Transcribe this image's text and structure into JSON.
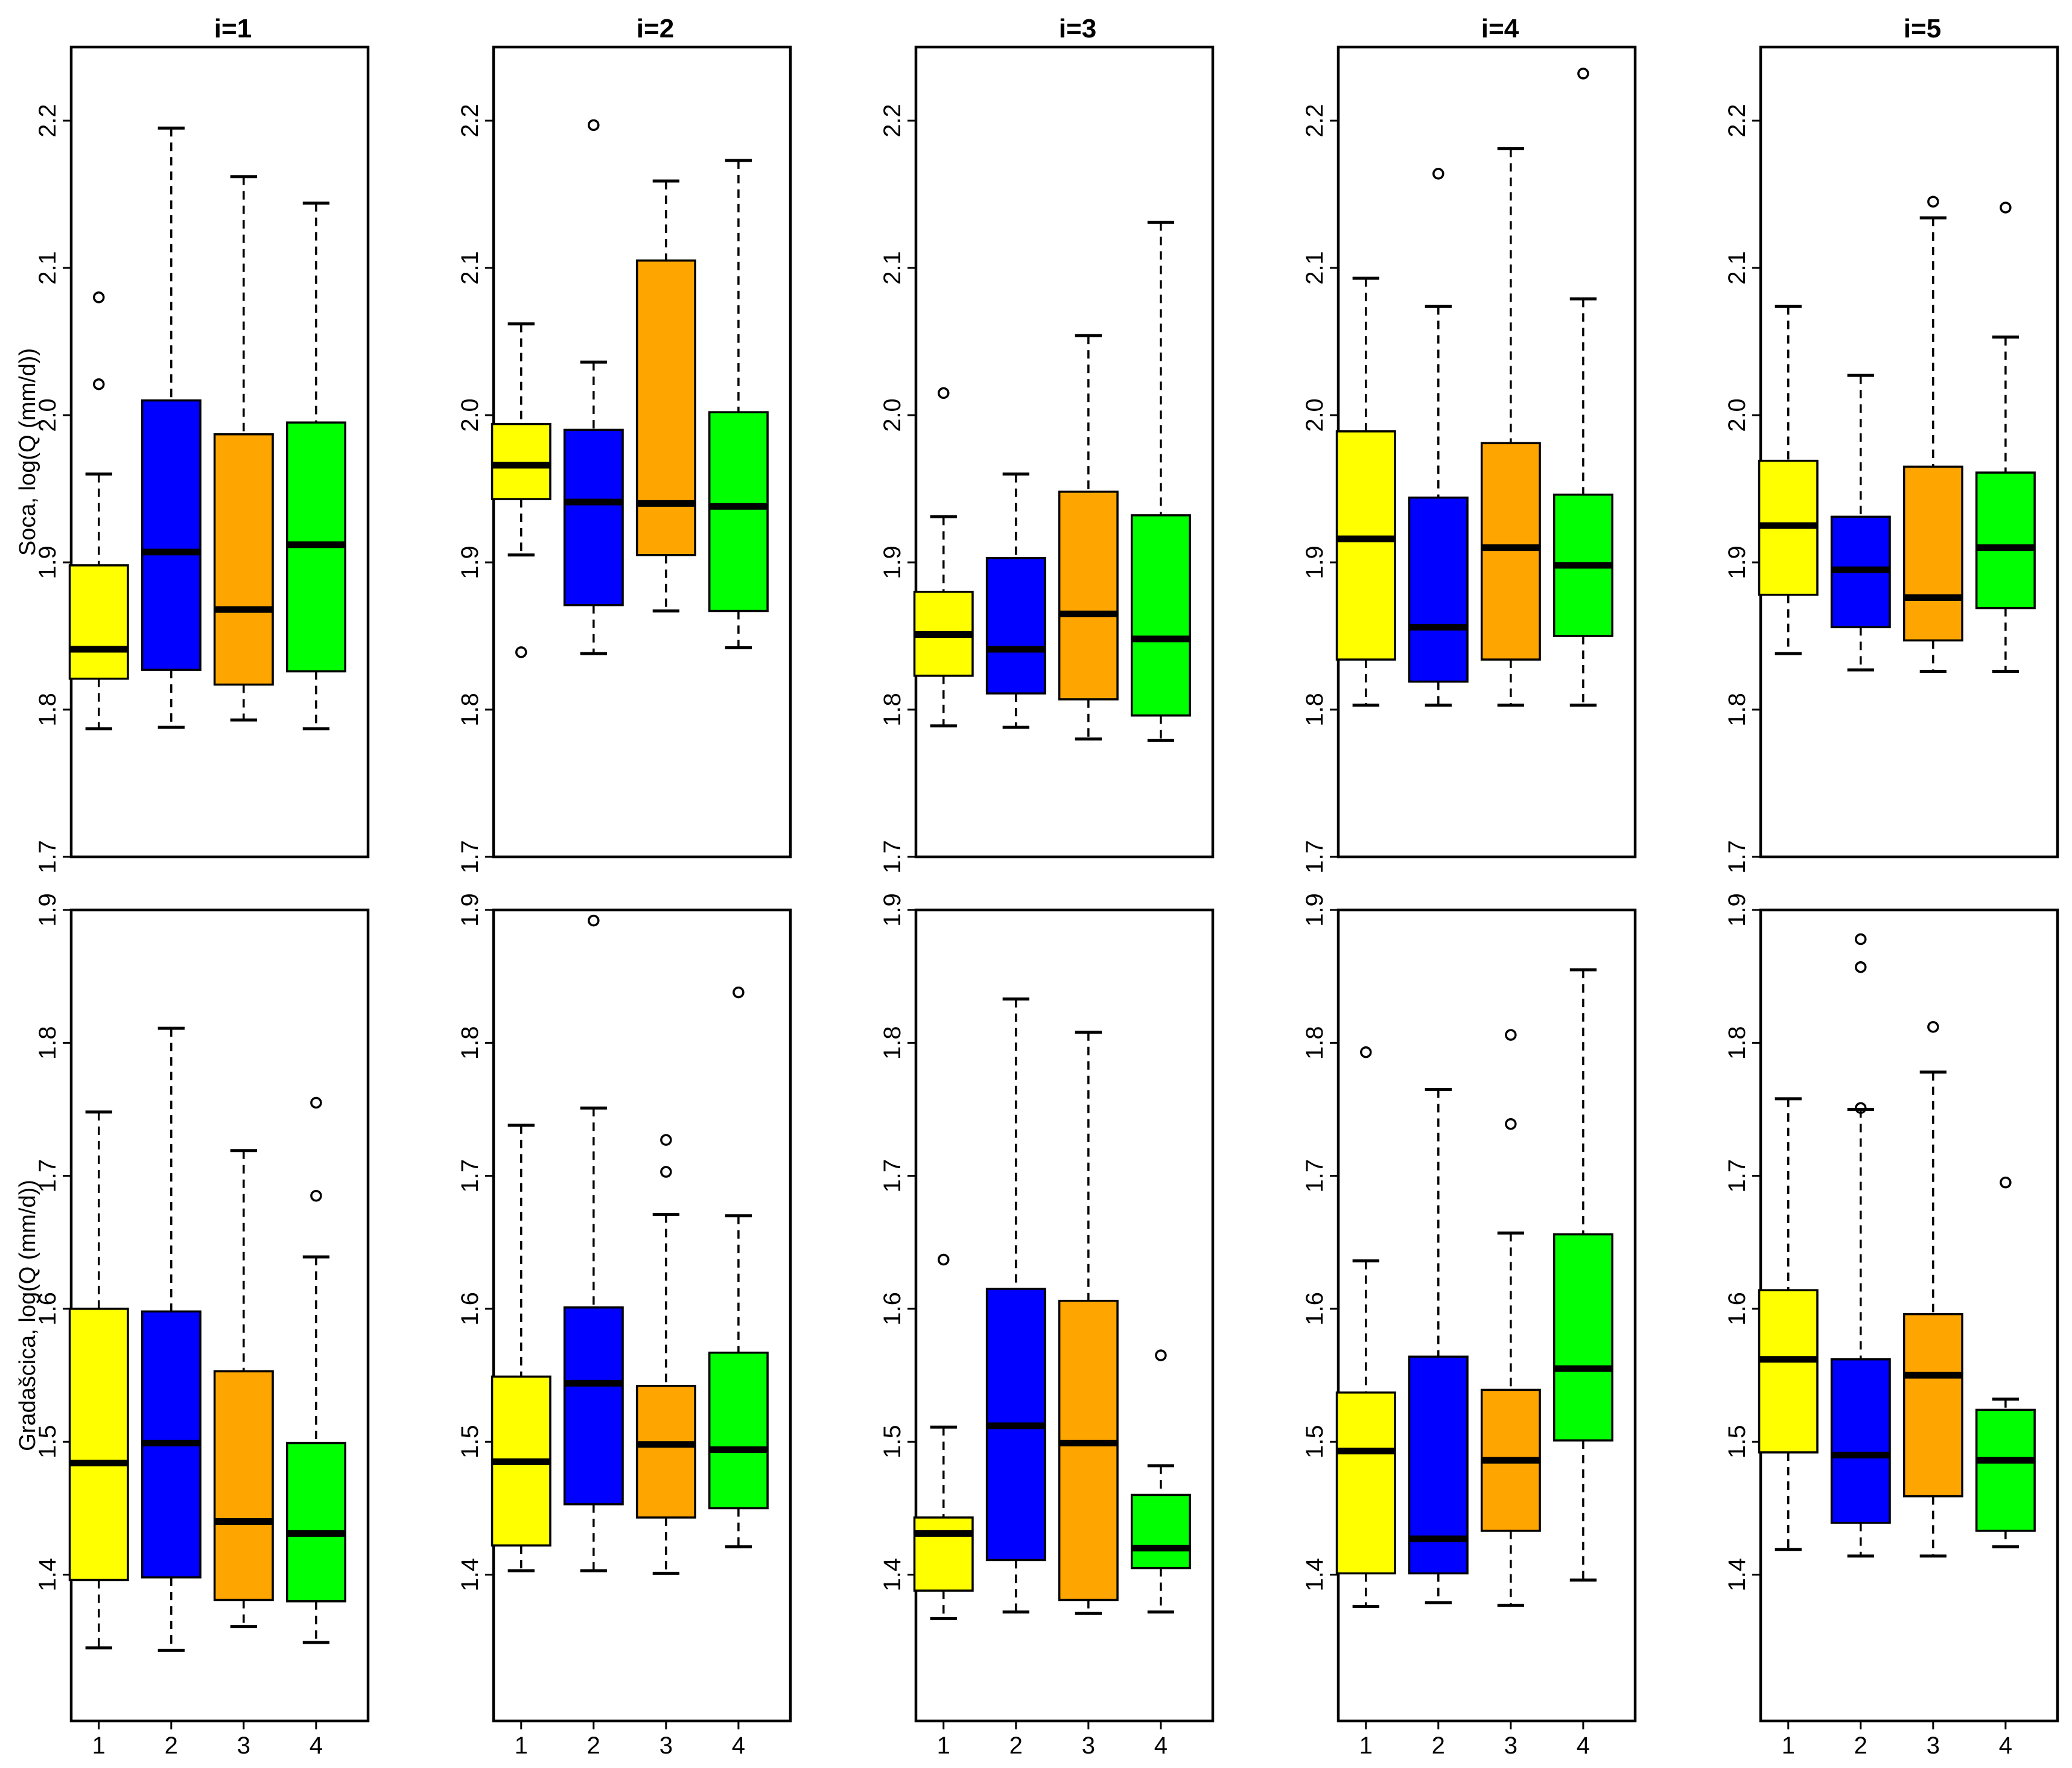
{
  "chart_data": [
    {
      "type": "boxplot",
      "row": 1,
      "ylabel": "Soca, log(Q (mm/d))",
      "ylim": [
        1.7,
        2.25
      ],
      "yticks": [
        "1.7",
        "1.8",
        "1.9",
        "2.0",
        "2.1",
        "2.2"
      ],
      "categories": [
        "1",
        "2",
        "3",
        "4"
      ],
      "colors": [
        "#ffff00",
        "#0000ff",
        "#ffa500",
        "#00ff00"
      ],
      "panels": [
        {
          "title": "i=1",
          "boxes": [
            {
              "min": 1.787,
              "q1": 1.821,
              "median": 1.841,
              "q3": 1.898,
              "max": 1.96,
              "outliers": [
                2.021,
                2.08
              ]
            },
            {
              "min": 1.788,
              "q1": 1.827,
              "median": 1.907,
              "q3": 2.01,
              "max": 2.195,
              "outliers": []
            },
            {
              "min": 1.793,
              "q1": 1.817,
              "median": 1.868,
              "q3": 1.987,
              "max": 2.162,
              "outliers": []
            },
            {
              "min": 1.787,
              "q1": 1.826,
              "median": 1.912,
              "q3": 1.995,
              "max": 2.144,
              "outliers": []
            }
          ]
        },
        {
          "title": "i=2",
          "boxes": [
            {
              "min": 1.905,
              "q1": 1.943,
              "median": 1.966,
              "q3": 1.994,
              "max": 2.062,
              "outliers": [
                1.839
              ]
            },
            {
              "min": 1.838,
              "q1": 1.871,
              "median": 1.941,
              "q3": 1.99,
              "max": 2.036,
              "outliers": [
                2.197
              ]
            },
            {
              "min": 1.867,
              "q1": 1.905,
              "median": 1.94,
              "q3": 2.105,
              "max": 2.159,
              "outliers": []
            },
            {
              "min": 1.842,
              "q1": 1.867,
              "median": 1.938,
              "q3": 2.002,
              "max": 2.173,
              "outliers": []
            }
          ]
        },
        {
          "title": "i=3",
          "boxes": [
            {
              "min": 1.789,
              "q1": 1.823,
              "median": 1.851,
              "q3": 1.88,
              "max": 1.931,
              "outliers": [
                2.015
              ]
            },
            {
              "min": 1.788,
              "q1": 1.811,
              "median": 1.841,
              "q3": 1.903,
              "max": 1.96,
              "outliers": []
            },
            {
              "min": 1.78,
              "q1": 1.807,
              "median": 1.865,
              "q3": 1.948,
              "max": 2.054,
              "outliers": []
            },
            {
              "min": 1.779,
              "q1": 1.796,
              "median": 1.848,
              "q3": 1.932,
              "max": 2.131,
              "outliers": []
            }
          ]
        },
        {
          "title": "i=4",
          "boxes": [
            {
              "min": 1.803,
              "q1": 1.834,
              "median": 1.916,
              "q3": 1.989,
              "max": 2.093,
              "outliers": []
            },
            {
              "min": 1.803,
              "q1": 1.819,
              "median": 1.856,
              "q3": 1.944,
              "max": 2.074,
              "outliers": [
                2.164
              ]
            },
            {
              "min": 1.803,
              "q1": 1.834,
              "median": 1.91,
              "q3": 1.981,
              "max": 2.181,
              "outliers": []
            },
            {
              "min": 1.803,
              "q1": 1.85,
              "median": 1.898,
              "q3": 1.946,
              "max": 2.079,
              "outliers": [
                2.232
              ]
            }
          ]
        },
        {
          "title": "i=5",
          "boxes": [
            {
              "min": 1.838,
              "q1": 1.878,
              "median": 1.925,
              "q3": 1.969,
              "max": 2.074,
              "outliers": []
            },
            {
              "min": 1.827,
              "q1": 1.856,
              "median": 1.895,
              "q3": 1.931,
              "max": 2.027,
              "outliers": []
            },
            {
              "min": 1.826,
              "q1": 1.847,
              "median": 1.876,
              "q3": 1.965,
              "max": 2.134,
              "outliers": [
                2.145
              ]
            },
            {
              "min": 1.826,
              "q1": 1.869,
              "median": 1.91,
              "q3": 1.961,
              "max": 2.053,
              "outliers": [
                2.141
              ]
            }
          ]
        }
      ]
    },
    {
      "type": "boxplot",
      "row": 2,
      "ylabel": "Gradašcica, log(Q (mm/d))",
      "ylim": [
        1.29,
        1.9
      ],
      "yticks": [
        "1.4",
        "1.5",
        "1.6",
        "1.7",
        "1.8",
        "1.9"
      ],
      "categories": [
        "1",
        "2",
        "3",
        "4"
      ],
      "colors": [
        "#ffff00",
        "#0000ff",
        "#ffa500",
        "#00ff00"
      ],
      "panels": [
        {
          "title": "i=1",
          "boxes": [
            {
              "min": 1.345,
              "q1": 1.396,
              "median": 1.484,
              "q3": 1.6,
              "max": 1.748,
              "outliers": []
            },
            {
              "min": 1.343,
              "q1": 1.398,
              "median": 1.499,
              "q3": 1.598,
              "max": 1.811,
              "outliers": []
            },
            {
              "min": 1.361,
              "q1": 1.381,
              "median": 1.44,
              "q3": 1.553,
              "max": 1.719,
              "outliers": []
            },
            {
              "min": 1.349,
              "q1": 1.38,
              "median": 1.431,
              "q3": 1.499,
              "max": 1.639,
              "outliers": [
                1.685,
                1.755
              ]
            }
          ]
        },
        {
          "title": "i=2",
          "boxes": [
            {
              "min": 1.403,
              "q1": 1.422,
              "median": 1.485,
              "q3": 1.549,
              "max": 1.738,
              "outliers": []
            },
            {
              "min": 1.403,
              "q1": 1.453,
              "median": 1.544,
              "q3": 1.601,
              "max": 1.751,
              "outliers": [
                1.892
              ]
            },
            {
              "min": 1.401,
              "q1": 1.443,
              "median": 1.498,
              "q3": 1.542,
              "max": 1.671,
              "outliers": [
                1.703,
                1.727
              ]
            },
            {
              "min": 1.421,
              "q1": 1.45,
              "median": 1.494,
              "q3": 1.567,
              "max": 1.67,
              "outliers": [
                1.838
              ]
            }
          ]
        },
        {
          "title": "i=3",
          "boxes": [
            {
              "min": 1.367,
              "q1": 1.388,
              "median": 1.431,
              "q3": 1.443,
              "max": 1.511,
              "outliers": [
                1.637
              ]
            },
            {
              "min": 1.372,
              "q1": 1.411,
              "median": 1.512,
              "q3": 1.615,
              "max": 1.833,
              "outliers": []
            },
            {
              "min": 1.371,
              "q1": 1.381,
              "median": 1.499,
              "q3": 1.606,
              "max": 1.808,
              "outliers": []
            },
            {
              "min": 1.372,
              "q1": 1.405,
              "median": 1.42,
              "q3": 1.46,
              "max": 1.482,
              "outliers": [
                1.565
              ]
            }
          ]
        },
        {
          "title": "i=4",
          "boxes": [
            {
              "min": 1.376,
              "q1": 1.401,
              "median": 1.493,
              "q3": 1.537,
              "max": 1.636,
              "outliers": [
                1.793
              ]
            },
            {
              "min": 1.379,
              "q1": 1.401,
              "median": 1.427,
              "q3": 1.564,
              "max": 1.765,
              "outliers": []
            },
            {
              "min": 1.377,
              "q1": 1.433,
              "median": 1.486,
              "q3": 1.539,
              "max": 1.657,
              "outliers": [
                1.739,
                1.806
              ]
            },
            {
              "min": 1.396,
              "q1": 1.501,
              "median": 1.555,
              "q3": 1.656,
              "max": 1.855,
              "outliers": []
            }
          ]
        },
        {
          "title": "i=5",
          "boxes": [
            {
              "min": 1.419,
              "q1": 1.492,
              "median": 1.562,
              "q3": 1.614,
              "max": 1.758,
              "outliers": []
            },
            {
              "min": 1.414,
              "q1": 1.439,
              "median": 1.49,
              "q3": 1.562,
              "max": 1.75,
              "outliers": [
                1.751,
                1.857,
                1.878
              ]
            },
            {
              "min": 1.414,
              "q1": 1.459,
              "median": 1.55,
              "q3": 1.596,
              "max": 1.778,
              "outliers": [
                1.812
              ]
            },
            {
              "min": 1.421,
              "q1": 1.433,
              "median": 1.486,
              "q3": 1.524,
              "max": 1.532,
              "outliers": [
                1.695
              ]
            }
          ]
        }
      ]
    }
  ]
}
